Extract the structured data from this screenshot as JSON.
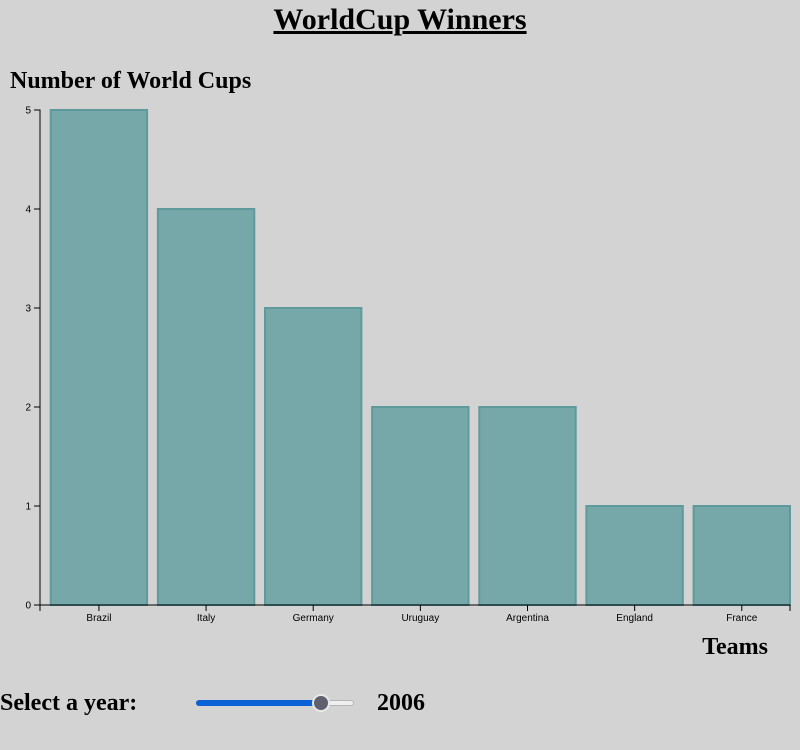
{
  "title": "WorldCup Winners",
  "chart_data": {
    "type": "bar",
    "title": "WorldCup Winners",
    "ylabel": "Number of World Cups",
    "xlabel": "Teams",
    "categories": [
      "Brazil",
      "Italy",
      "Germany",
      "Uruguay",
      "Argentina",
      "England",
      "France"
    ],
    "values": [
      5,
      4,
      3,
      2,
      2,
      1,
      1
    ],
    "ylim": [
      0,
      5
    ],
    "yticks": [
      0,
      1,
      2,
      3,
      4,
      5
    ],
    "grid": false,
    "bar_color": "#76a8a9",
    "bar_stroke": "#5e9a9b"
  },
  "controls": {
    "label": "Select a year:",
    "year": "2006",
    "slider_fraction": 0.79,
    "fill_color": "#0a60d6",
    "thumb_color": "#5f5f6e"
  }
}
